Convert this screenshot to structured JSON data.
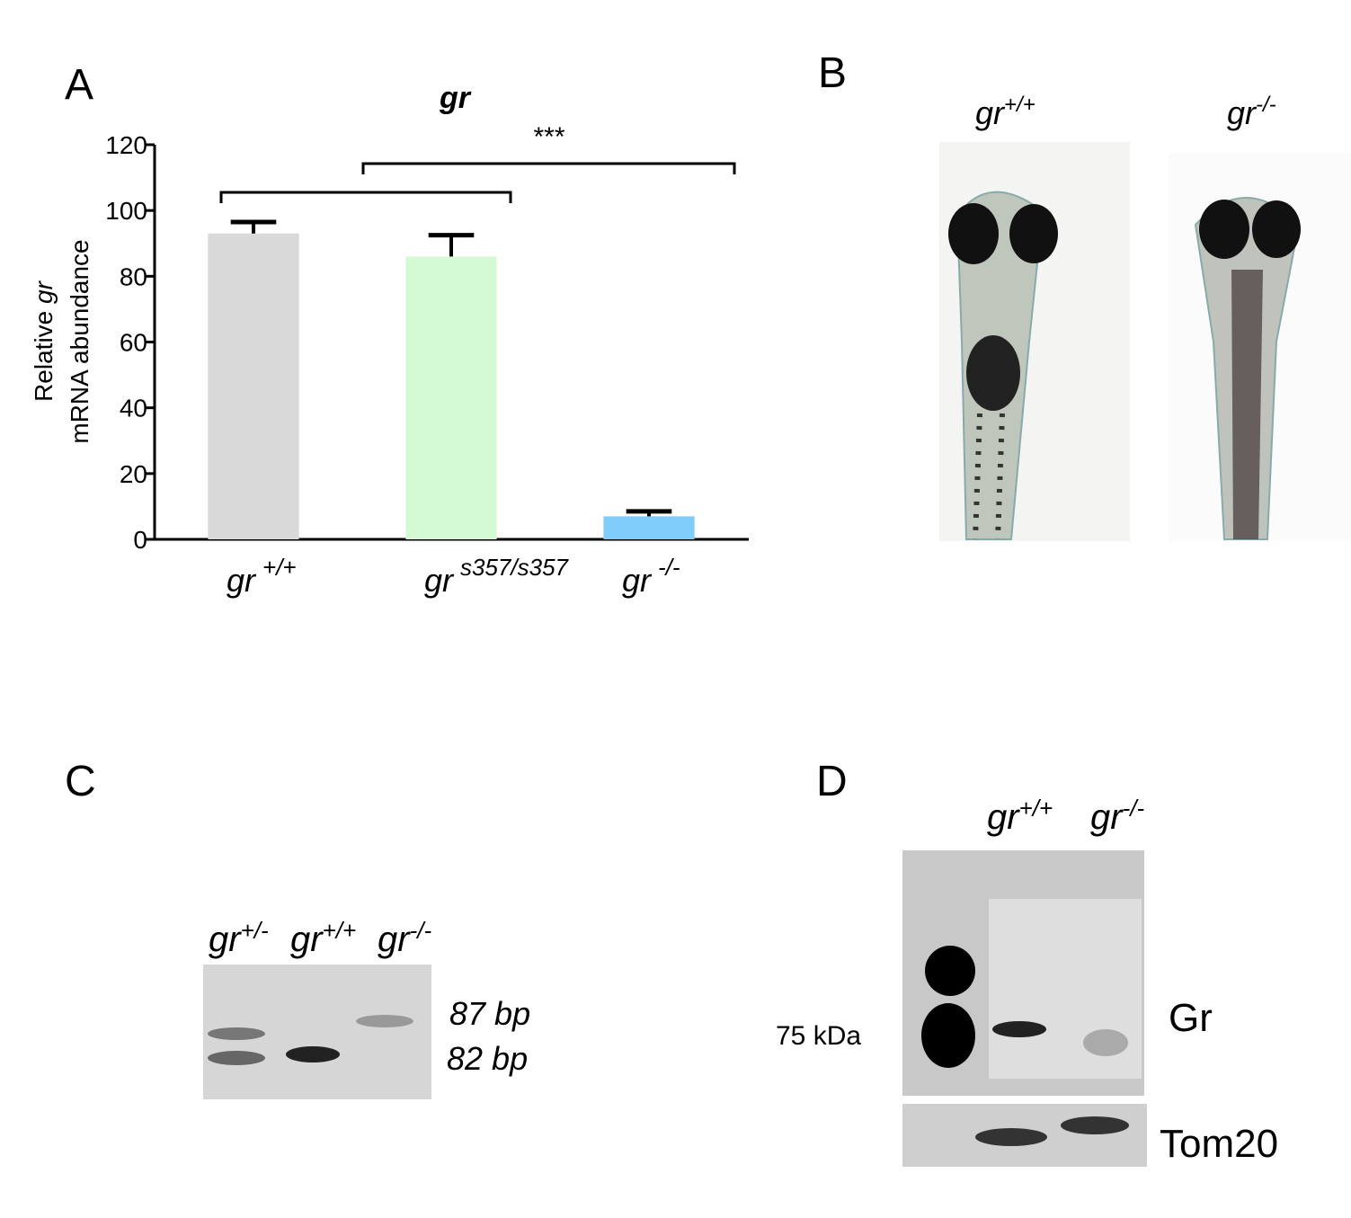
{
  "panels": {
    "a": "A",
    "b": "B",
    "c": "C",
    "d": "D"
  },
  "chart_data": {
    "type": "bar",
    "title": "gr",
    "ylabel": {
      "prefix": "Relative",
      "italic": "gr",
      "line2": "mRNA abundance"
    },
    "categories": [
      "gr",
      "gr",
      "gr"
    ],
    "category_superscripts": [
      "+/+",
      "s357/s357",
      "-/-"
    ],
    "values": [
      93,
      86,
      7
    ],
    "errors": [
      3.5,
      6.5,
      1.5
    ],
    "colors": [
      "#d9d9d9",
      "#d4fad4",
      "#7fcdfa"
    ],
    "ylim": [
      0,
      120
    ],
    "yticks": [
      0,
      20,
      40,
      60,
      80,
      100,
      120
    ],
    "annotations": [
      "***"
    ]
  },
  "panel_b": {
    "labels": [
      {
        "base": "gr",
        "sup": "+/+"
      },
      {
        "base": "gr",
        "sup": "-/-"
      }
    ]
  },
  "panel_c": {
    "lanes": [
      {
        "base": "gr",
        "sup": "+/-"
      },
      {
        "base": "gr",
        "sup": "+/+"
      },
      {
        "base": "gr",
        "sup": "-/-"
      }
    ],
    "bands": [
      "87 bp",
      "82 bp"
    ]
  },
  "panel_d": {
    "lanes": [
      {
        "base": "gr",
        "sup": "+/+"
      },
      {
        "base": "gr",
        "sup": "-/-"
      }
    ],
    "marker": "75 kDa",
    "proteins": [
      "Gr",
      "Tom20"
    ]
  }
}
